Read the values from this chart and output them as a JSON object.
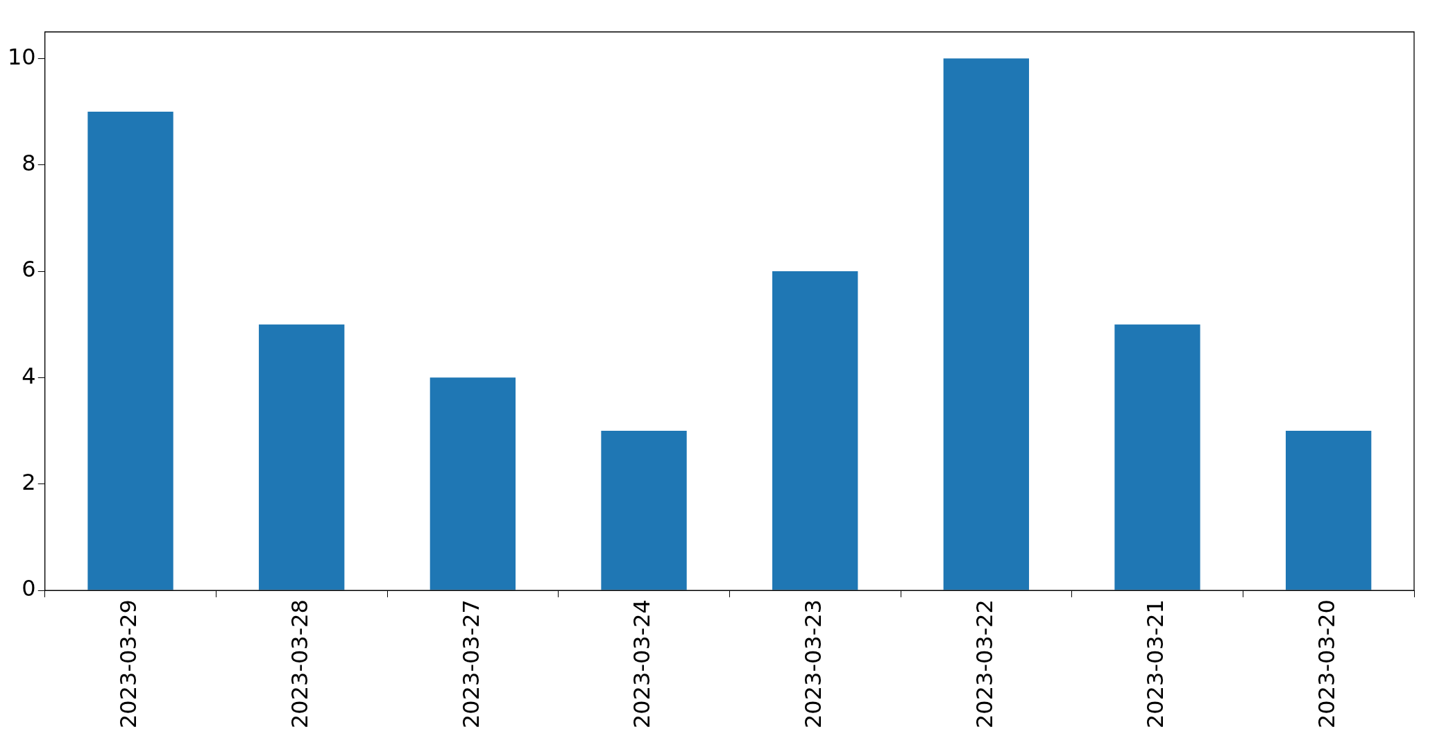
{
  "chart_data": {
    "type": "bar",
    "categories": [
      "2023-03-29",
      "2023-03-28",
      "2023-03-27",
      "2023-03-24",
      "2023-03-23",
      "2023-03-22",
      "2023-03-21",
      "2023-03-20"
    ],
    "values": [
      9,
      5,
      4,
      3,
      6,
      10,
      5,
      3
    ],
    "color": "#1f77b4",
    "ylim": [
      0,
      10.5
    ],
    "yticks": [
      0,
      2,
      4,
      6,
      8,
      10
    ],
    "grid": false,
    "legend": false
  }
}
